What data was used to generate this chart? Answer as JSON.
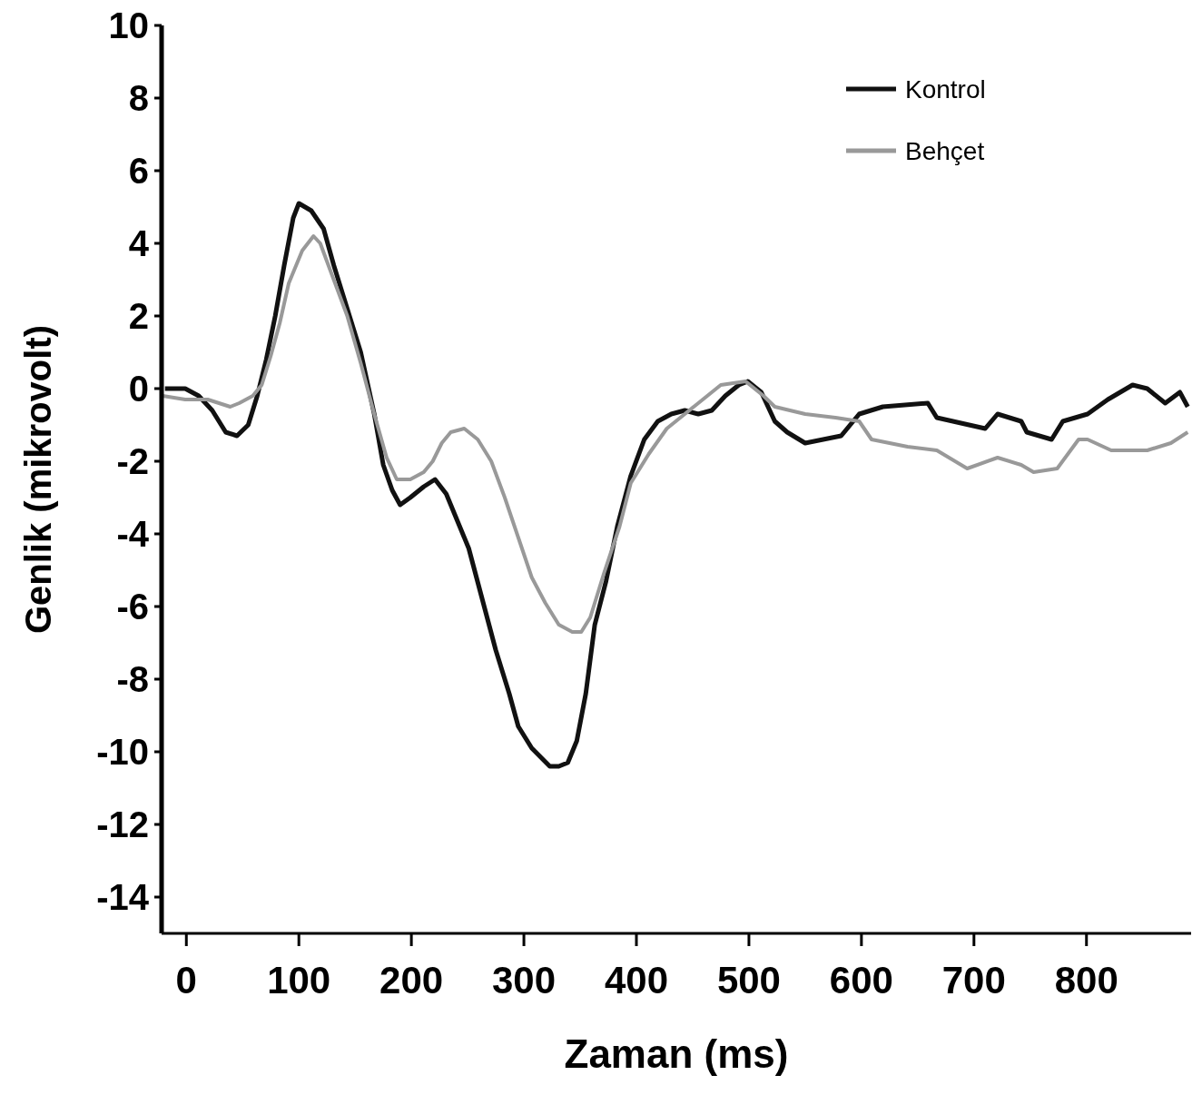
{
  "chart_data": {
    "type": "line",
    "xlabel": "Zaman (ms)",
    "ylabel": "Genlik (mikrovolt)",
    "xlim": [
      -22,
      893
    ],
    "ylim": [
      -15,
      10
    ],
    "xticks": [
      0,
      100,
      200,
      300,
      400,
      500,
      600,
      700,
      800
    ],
    "yticks": [
      -14,
      -12,
      -10,
      -8,
      -6,
      -4,
      -2,
      0,
      2,
      4,
      6,
      8,
      10
    ],
    "grid": false,
    "legend": "top right",
    "marker": "none",
    "line_style": "solid",
    "series": [
      {
        "name": "Kontrol",
        "color": "#111111",
        "x": [
          -19,
          -1,
          11,
          23,
          35,
          45,
          55,
          63,
          71,
          79,
          87,
          95,
          100,
          111,
          122,
          131,
          143,
          155,
          167,
          175,
          183,
          190,
          199,
          211,
          221,
          231,
          243,
          251,
          263,
          275,
          287,
          295,
          307,
          323,
          331,
          339,
          347,
          355,
          363,
          373,
          383,
          395,
          407,
          419,
          431,
          443,
          455,
          467,
          479,
          491,
          499,
          511,
          523,
          534,
          550,
          566,
          582,
          598,
          619,
          659,
          667,
          710,
          721,
          742,
          747,
          769,
          779,
          801,
          819,
          841,
          854,
          870,
          883,
          890
        ],
        "values": [
          0.0,
          0.0,
          -0.2,
          -0.6,
          -1.2,
          -1.3,
          -1.0,
          -0.2,
          0.8,
          2.0,
          3.4,
          4.7,
          5.1,
          4.9,
          4.4,
          3.4,
          2.2,
          1.0,
          -0.7,
          -2.1,
          -2.8,
          -3.2,
          -3.0,
          -2.7,
          -2.5,
          -2.9,
          -3.8,
          -4.4,
          -5.8,
          -7.2,
          -8.4,
          -9.3,
          -9.9,
          -10.4,
          -10.4,
          -10.3,
          -9.7,
          -8.4,
          -6.5,
          -5.3,
          -3.8,
          -2.4,
          -1.4,
          -0.9,
          -0.7,
          -0.6,
          -0.7,
          -0.6,
          -0.2,
          0.1,
          0.2,
          -0.1,
          -0.9,
          -1.2,
          -1.5,
          -1.4,
          -1.3,
          -0.7,
          -0.5,
          -0.4,
          -0.8,
          -1.1,
          -0.7,
          -0.9,
          -1.2,
          -1.4,
          -0.9,
          -0.7,
          -0.3,
          0.1,
          0.0,
          -0.4,
          -0.1,
          -0.5
        ]
      },
      {
        "name": "Behçet",
        "color": "#999999",
        "x": [
          -21,
          -1,
          11,
          19,
          39,
          47,
          59,
          67,
          75,
          83,
          91,
          103,
          113,
          119,
          131,
          143,
          155,
          167,
          178,
          187,
          199,
          211,
          219,
          227,
          235,
          247,
          259,
          271,
          283,
          295,
          307,
          319,
          331,
          343,
          351,
          359,
          371,
          385,
          395,
          411,
          427,
          443,
          459,
          475,
          497,
          513,
          523,
          550,
          577,
          598,
          609,
          641,
          667,
          694,
          721,
          742,
          753,
          774,
          793,
          801,
          822,
          854,
          875,
          890
        ],
        "values": [
          -0.2,
          -0.3,
          -0.3,
          -0.3,
          -0.5,
          -0.4,
          -0.2,
          0.1,
          0.9,
          1.8,
          2.9,
          3.8,
          4.2,
          4.0,
          3.0,
          2.0,
          0.7,
          -0.7,
          -1.9,
          -2.5,
          -2.5,
          -2.3,
          -2.0,
          -1.5,
          -1.2,
          -1.1,
          -1.4,
          -2.0,
          -3.0,
          -4.1,
          -5.2,
          -5.9,
          -6.5,
          -6.7,
          -6.7,
          -6.3,
          -5.1,
          -3.8,
          -2.6,
          -1.8,
          -1.1,
          -0.7,
          -0.3,
          0.1,
          0.2,
          -0.2,
          -0.5,
          -0.7,
          -0.8,
          -0.9,
          -1.4,
          -1.6,
          -1.7,
          -2.2,
          -1.9,
          -2.1,
          -2.3,
          -2.2,
          -1.4,
          -1.4,
          -1.7,
          -1.7,
          -1.5,
          -1.2
        ]
      }
    ]
  }
}
